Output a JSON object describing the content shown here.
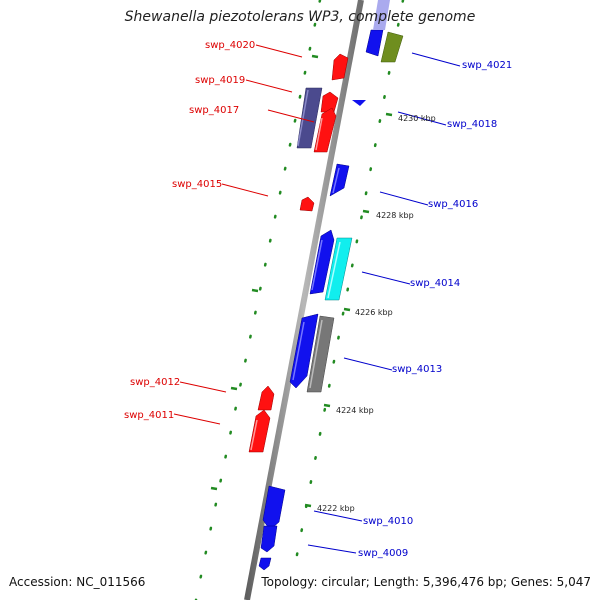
{
  "title": "Shewanella piezotolerans WP3, complete genome",
  "footer": {
    "accession": "Accession: NC_011566",
    "stats": "Topology: circular; Length: 5,396,476 bp; Genes: 5,047"
  },
  "colors": {
    "forward_red": "#ff1111",
    "reverse_blue": "#1111ee",
    "slate": "#4b4a8e",
    "olive": "#6f8e1f",
    "cyan": "#11eeee",
    "gray": "#777777",
    "backbone": "#8a8a8a",
    "tick_green": "#228b22"
  },
  "kbp_ticks": [
    "4230 kbp",
    "4228 kbp",
    "4226 kbp",
    "4224 kbp",
    "4222 kbp"
  ],
  "genes_left": [
    "swp_4020",
    "swp_4019",
    "swp_4017",
    "swp_4015",
    "swp_4012",
    "swp_4011"
  ],
  "genes_right": [
    "swp_4021",
    "swp_4018",
    "swp_4016",
    "swp_4014",
    "swp_4013",
    "swp_4010",
    "swp_4009"
  ]
}
